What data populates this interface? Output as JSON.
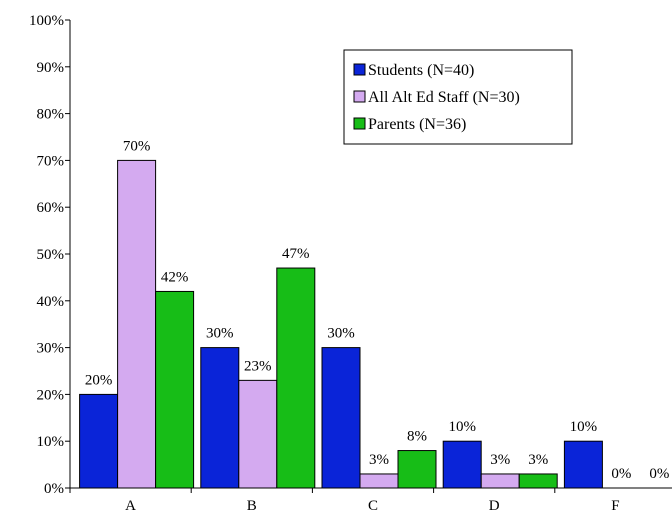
{
  "chart_data": {
    "type": "bar",
    "categories": [
      "A",
      "B",
      "C",
      "D",
      "F"
    ],
    "series": [
      {
        "name": "Students (N=40)",
        "values": [
          20,
          30,
          30,
          10,
          10
        ],
        "labels": [
          "20%",
          "30%",
          "30%",
          "10%",
          "10%"
        ],
        "color": "#0a24d8"
      },
      {
        "name": "All Alt Ed Staff (N=30)",
        "values": [
          70,
          23,
          3,
          3,
          0
        ],
        "labels": [
          "70%",
          "23%",
          "3%",
          "3%",
          "0%"
        ],
        "color": "#d4aaf0"
      },
      {
        "name": "Parents (N=36)",
        "values": [
          42,
          47,
          8,
          3,
          0
        ],
        "labels": [
          "42%",
          "47%",
          "8%",
          "3%",
          "0%"
        ],
        "color": "#17bd17"
      }
    ],
    "ylim": [
      0,
      100
    ],
    "yticks": [
      0,
      10,
      20,
      30,
      40,
      50,
      60,
      70,
      80,
      90,
      100
    ],
    "ytick_labels": [
      "0%",
      "10%",
      "20%",
      "30%",
      "40%",
      "50%",
      "60%",
      "70%",
      "80%",
      "90%",
      "100%"
    ],
    "title": "",
    "xlabel": "",
    "ylabel": "",
    "grid": false,
    "legend_position": "top-right"
  }
}
